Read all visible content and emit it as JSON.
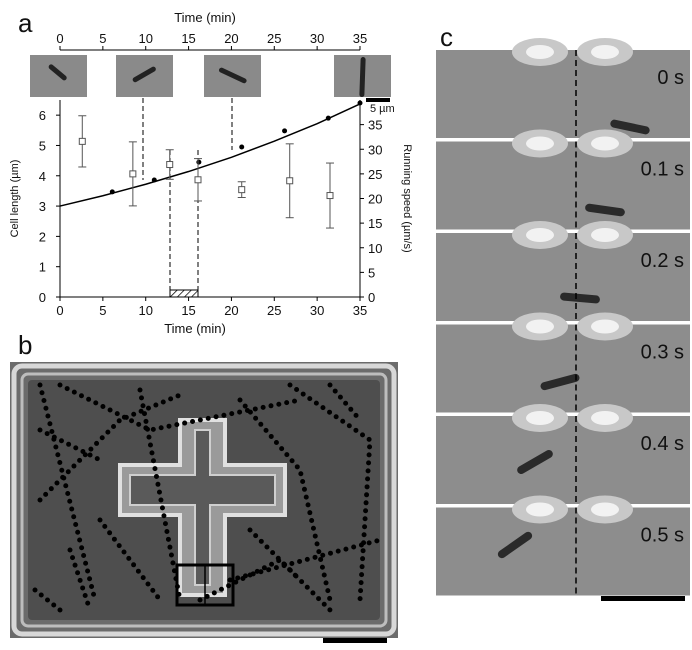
{
  "panel_labels": [
    "a",
    "b",
    "c"
  ],
  "frame_labels": [
    "0 s",
    "0.1 s",
    "0.2 s",
    "0.3 s",
    "0.4 s",
    "0.5 s"
  ],
  "chart_data": {
    "type": "scatter",
    "x_label": "Time (min)",
    "top_x_label": "Time (min)",
    "y_label": "Cell length (µm)",
    "y2_label": "Running speed (µm/s)",
    "scale_bar_label": "5 µm",
    "xlim": [
      0,
      35
    ],
    "xticks": [
      0,
      5,
      10,
      15,
      20,
      25,
      30,
      35
    ],
    "ylim": [
      0,
      6.5
    ],
    "yticks": [
      0,
      1,
      2,
      3,
      4,
      5,
      6
    ],
    "y2lim": [
      0,
      40
    ],
    "y2ticks": [
      0,
      5,
      10,
      15,
      20,
      25,
      30,
      35
    ],
    "series": [
      {
        "type": "scatter",
        "marker": "dot",
        "color": "#000000",
        "x": [
          6.1,
          11.0,
          16.2,
          21.2,
          26.2,
          31.3,
          35.0
        ],
        "values": [
          3.47,
          3.86,
          4.45,
          4.95,
          5.48,
          5.9,
          6.4
        ]
      },
      {
        "type": "line",
        "color": "#000000",
        "x": [
          0,
          5,
          10,
          15,
          20,
          25,
          30,
          35
        ],
        "values": [
          3.0,
          3.34,
          3.72,
          4.14,
          4.61,
          5.14,
          5.72,
          6.37
        ]
      },
      {
        "type": "scatter",
        "marker": "square",
        "axis": "y2",
        "color": "#555555",
        "x": [
          2.6,
          8.5,
          12.8,
          16.1,
          21.2,
          26.8,
          31.5
        ],
        "values": [
          31.6,
          25.0,
          26.9,
          23.8,
          21.8,
          23.6,
          20.6
        ],
        "errors": [
          5.2,
          6.5,
          3.0,
          4.3,
          1.6,
          7.5,
          6.6
        ]
      }
    ]
  }
}
